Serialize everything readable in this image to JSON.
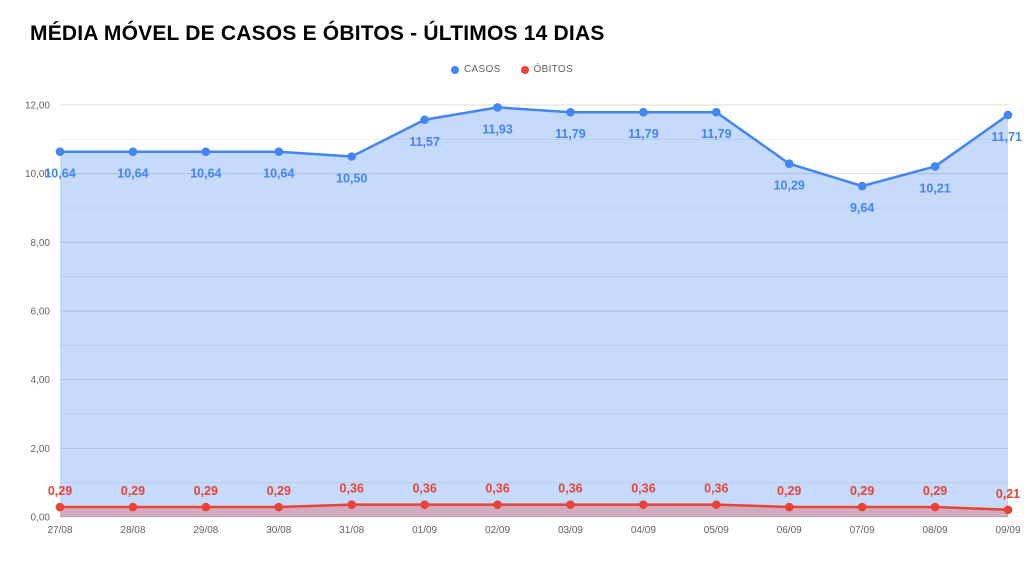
{
  "title": "MÉDIA MÓVEL DE CASOS E ÓBITOS - ÚLTIMOS 14 DIAS",
  "legend": {
    "items": [
      {
        "label": "CASOS",
        "color": "#4285f4"
      },
      {
        "label": "ÓBITOS",
        "color": "#ea4335"
      }
    ]
  },
  "chart_data": {
    "type": "area",
    "title": "MÉDIA MÓVEL DE CASOS E ÓBITOS - ÚLTIMOS 14 DIAS",
    "categories": [
      "27/08",
      "28/08",
      "29/08",
      "30/08",
      "31/08",
      "01/09",
      "02/09",
      "03/09",
      "04/09",
      "05/09",
      "06/09",
      "07/09",
      "08/09",
      "09/09"
    ],
    "series": [
      {
        "name": "CASOS",
        "color": "#4285f4",
        "fill": "rgba(66,133,244,0.30)",
        "values": [
          10.64,
          10.64,
          10.64,
          10.64,
          10.5,
          11.57,
          11.93,
          11.79,
          11.79,
          11.79,
          10.29,
          9.64,
          10.21,
          11.71
        ],
        "labels": [
          "10,64",
          "10,64",
          "10,64",
          "10,64",
          "10,50",
          "11,57",
          "11,93",
          "11,79",
          "11,79",
          "11,79",
          "10,29",
          "9,64",
          "10,21",
          "11,71"
        ],
        "label_position": "below"
      },
      {
        "name": "ÓBITOS",
        "color": "#ea4335",
        "fill": "rgba(234,67,53,0.30)",
        "values": [
          0.29,
          0.29,
          0.29,
          0.29,
          0.36,
          0.36,
          0.36,
          0.36,
          0.36,
          0.36,
          0.29,
          0.29,
          0.29,
          0.21
        ],
        "labels": [
          "0,29",
          "0,29",
          "0,29",
          "0,29",
          "0,36",
          "0,36",
          "0,36",
          "0,36",
          "0,36",
          "0,36",
          "0,29",
          "0,29",
          "0,29",
          "0,21"
        ],
        "label_position": "above"
      }
    ],
    "xlabel": "",
    "ylabel": "",
    "ylim": [
      0,
      12
    ],
    "ytick_step": 2,
    "ytick_labels": [
      "0,00",
      "2,00",
      "4,00",
      "6,00",
      "8,00",
      "10,00",
      "12,00"
    ],
    "grid": true,
    "legend_position": "top-center"
  }
}
